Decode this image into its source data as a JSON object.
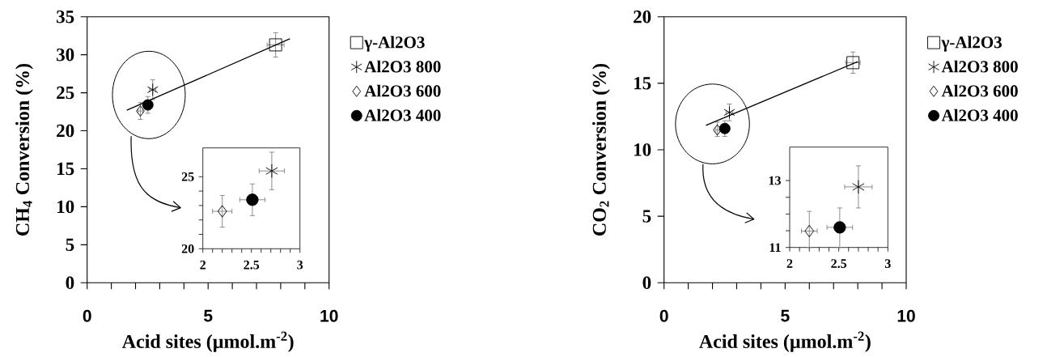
{
  "chart_data": [
    {
      "type": "scatter",
      "xlabel": "Acid sites (µmol.m$^{-2}$)",
      "ylabel": "CH$_{4}$ Conversion (%)",
      "xlim": [
        0,
        10
      ],
      "ylim": [
        0,
        35
      ],
      "xticks": [
        0,
        5,
        10
      ],
      "yticks": [
        0,
        5,
        10,
        15,
        20,
        25,
        30,
        35
      ],
      "legend": "right",
      "series": [
        {
          "name": "γ-Al2O3",
          "color": "#000000",
          "marker": "square",
          "x": [
            7.79
          ],
          "values": [
            31.3
          ],
          "errors": [
            1.6
          ],
          "xerrors": [
            0.35
          ]
        },
        {
          "name": "Al2O3 800",
          "color": "#000000",
          "marker": "cross",
          "x": [
            2.71
          ],
          "values": [
            25.4
          ],
          "errors": [
            1.3
          ],
          "xerrors": [
            0.13
          ]
        },
        {
          "name": "Al2O3 600",
          "color": "#000000",
          "marker": "diamond",
          "x": [
            2.2
          ],
          "values": [
            22.6
          ],
          "errors": [
            1.1
          ],
          "xerrors": [
            0.1
          ]
        },
        {
          "name": "Al2O3 400",
          "color": "#000000",
          "marker": "circle",
          "x": [
            2.51
          ],
          "values": [
            23.4
          ],
          "errors": [
            1.1
          ],
          "xerrors": [
            0.13
          ]
        },
        {
          "type": "line",
          "color": "#000000",
          "x": [
            1.64,
            8.38
          ],
          "values": [
            22.7,
            32.1
          ]
        }
      ]
    },
    {
      "type": "scatter",
      "xlim": [
        2,
        3
      ],
      "ylim": [
        20,
        27
      ],
      "xticks": [
        2,
        2.5,
        3
      ],
      "yticks": [
        20,
        25
      ],
      "series": [
        {
          "color": "#000000",
          "marker": "cross",
          "x": [
            2.71
          ],
          "values": [
            25.4
          ],
          "errors": [
            1.3
          ],
          "xerrors": [
            0.13
          ]
        },
        {
          "color": "#000000",
          "marker": "diamond",
          "x": [
            2.2
          ],
          "values": [
            22.6
          ],
          "errors": [
            1.1
          ],
          "xerrors": [
            0.1
          ]
        },
        {
          "color": "#000000",
          "marker": "circle",
          "x": [
            2.51
          ],
          "values": [
            23.4
          ],
          "errors": [
            1.1
          ],
          "xerrors": [
            0.13
          ]
        }
      ]
    },
    {
      "type": "scatter",
      "xlabel": "Acid sites (µmol.m$^{-2}$)",
      "ylabel": "CO$_{2}$ Conversion (%)",
      "xlim": [
        0,
        10
      ],
      "ylim": [
        0,
        20
      ],
      "xticks": [
        0,
        5,
        10
      ],
      "yticks": [
        0,
        5,
        10,
        15,
        20
      ],
      "legend": "right",
      "series": [
        {
          "name": "γ-Al2O3",
          "color": "#000000",
          "marker": "square",
          "x": [
            7.8
          ],
          "values": [
            16.55
          ],
          "errors": [
            0.8
          ],
          "xerrors": [
            0.3
          ]
        },
        {
          "name": "Al2O3 800",
          "color": "#000000",
          "marker": "cross",
          "x": [
            2.7
          ],
          "values": [
            12.81
          ],
          "errors": [
            0.63
          ],
          "xerrors": [
            0.14
          ]
        },
        {
          "name": "Al2O3 600",
          "color": "#000000",
          "marker": "diamond",
          "x": [
            2.2
          ],
          "values": [
            11.49
          ],
          "errors": [
            [
              11.0,
              12.08
            ]
          ],
          "xerrors": [
            0.08
          ]
        },
        {
          "name": "Al2O3 400",
          "color": "#000000",
          "marker": "circle",
          "x": [
            2.51
          ],
          "values": [
            11.6
          ],
          "errors": [
            [
              11.0,
              12.18
            ]
          ],
          "xerrors": [
            0.13
          ]
        },
        {
          "type": "line",
          "color": "#000000",
          "x": [
            1.73,
            8.0
          ],
          "values": [
            11.83,
            16.63
          ]
        }
      ]
    },
    {
      "type": "scatter",
      "xlim": [
        2,
        3
      ],
      "ylim": [
        11,
        14
      ],
      "xticks": [
        2,
        2.5,
        3
      ],
      "yticks": [
        11,
        13
      ],
      "series": [
        {
          "color": "#000000",
          "marker": "cross",
          "x": [
            2.7
          ],
          "values": [
            12.81
          ],
          "errors": [
            0.63
          ],
          "xerrors": [
            0.14
          ]
        },
        {
          "color": "#000000",
          "marker": "diamond",
          "x": [
            2.2
          ],
          "values": [
            11.49
          ],
          "errors": [
            [
              11.0,
              12.08
            ]
          ],
          "xerrors": [
            0.08
          ]
        },
        {
          "color": "#000000",
          "marker": "circle",
          "x": [
            2.51
          ],
          "values": [
            11.6
          ],
          "errors": [
            [
              11.0,
              12.18
            ]
          ],
          "xerrors": [
            0.13
          ]
        }
      ]
    }
  ]
}
